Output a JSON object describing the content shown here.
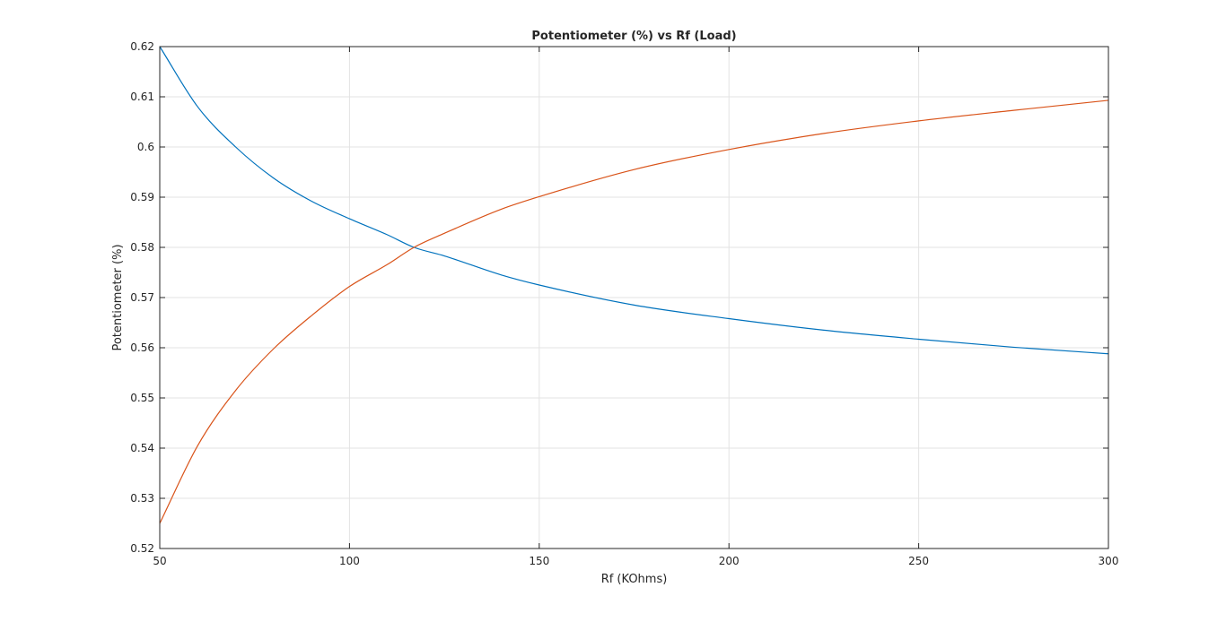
{
  "chart_data": {
    "type": "line",
    "title": "Potentiometer (%) vs Rf (Load)",
    "xlabel": "Rf (KOhms)",
    "ylabel": "Potentiometer (%)",
    "xlim": [
      50,
      300
    ],
    "ylim": [
      0.52,
      0.62
    ],
    "xticks": [
      50,
      100,
      150,
      200,
      250,
      300
    ],
    "yticks": [
      0.52,
      0.53,
      0.54,
      0.55,
      0.56,
      0.57,
      0.58,
      0.59,
      0.6,
      0.61,
      0.62
    ],
    "xtick_labels": [
      "50",
      "100",
      "150",
      "200",
      "250",
      "300"
    ],
    "ytick_labels": [
      "0.52",
      "0.53",
      "0.54",
      "0.55",
      "0.56",
      "0.57",
      "0.58",
      "0.59",
      "0.6",
      "0.61",
      "0.62"
    ],
    "grid": true,
    "series": [
      {
        "color": "#0072BD",
        "x": [
          50,
          60,
          70,
          80,
          90,
          100,
          110,
          117,
          125,
          140,
          150,
          175,
          200,
          225,
          250,
          275,
          300
        ],
        "y": [
          0.62,
          0.608,
          0.6,
          0.5938,
          0.5892,
          0.5857,
          0.5825,
          0.58,
          0.5783,
          0.5745,
          0.5725,
          0.5685,
          0.5658,
          0.5635,
          0.5617,
          0.5601,
          0.5588
        ]
      },
      {
        "color": "#D95319",
        "x": [
          50,
          60,
          70,
          80,
          90,
          100,
          110,
          117,
          125,
          140,
          150,
          175,
          200,
          225,
          250,
          275,
          300
        ],
        "y": [
          0.525,
          0.5405,
          0.5515,
          0.5598,
          0.5664,
          0.5722,
          0.5766,
          0.58,
          0.5828,
          0.5876,
          0.5901,
          0.5955,
          0.5995,
          0.6027,
          0.6052,
          0.6073,
          0.6093
        ]
      }
    ]
  }
}
